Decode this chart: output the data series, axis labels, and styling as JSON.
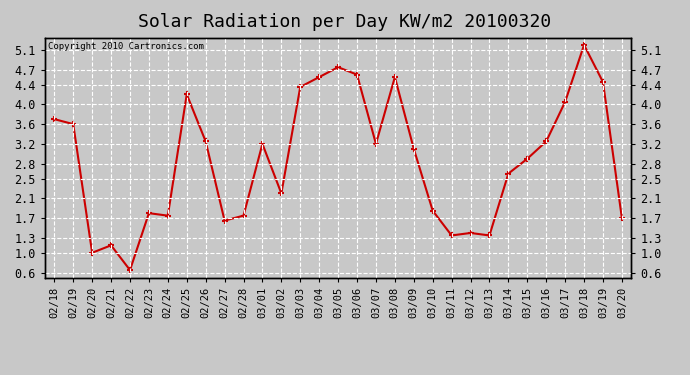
{
  "title": "Solar Radiation per Day KW/m2 20100320",
  "copyright": "Copyright 2010 Cartronics.com",
  "dates": [
    "02/18",
    "02/19",
    "02/20",
    "02/21",
    "02/22",
    "02/23",
    "02/24",
    "02/25",
    "02/26",
    "02/27",
    "02/28",
    "03/01",
    "03/02",
    "03/03",
    "03/04",
    "03/05",
    "03/06",
    "03/07",
    "03/08",
    "03/09",
    "03/10",
    "03/11",
    "03/12",
    "03/13",
    "03/14",
    "03/15",
    "03/16",
    "03/17",
    "03/18",
    "03/19",
    "03/20"
  ],
  "values": [
    3.7,
    3.6,
    1.0,
    1.15,
    0.65,
    1.8,
    1.75,
    4.2,
    3.25,
    1.65,
    1.75,
    3.2,
    2.2,
    4.35,
    4.55,
    4.75,
    4.6,
    3.2,
    4.55,
    3.1,
    1.85,
    1.35,
    1.4,
    1.35,
    2.6,
    2.9,
    3.25,
    4.05,
    5.2,
    4.45,
    1.7
  ],
  "line_color": "#cc0000",
  "marker_color": "#cc0000",
  "bg_color": "#c8c8c8",
  "plot_bg_color": "#c8c8c8",
  "grid_color": "#ffffff",
  "title_fontsize": 13,
  "yticks": [
    0.6,
    1.0,
    1.3,
    1.7,
    2.1,
    2.5,
    2.8,
    3.2,
    3.6,
    4.0,
    4.4,
    4.7,
    5.1
  ],
  "ylim": [
    0.5,
    5.35
  ],
  "tick_fontsize": 8.5,
  "xtick_fontsize": 7.5
}
